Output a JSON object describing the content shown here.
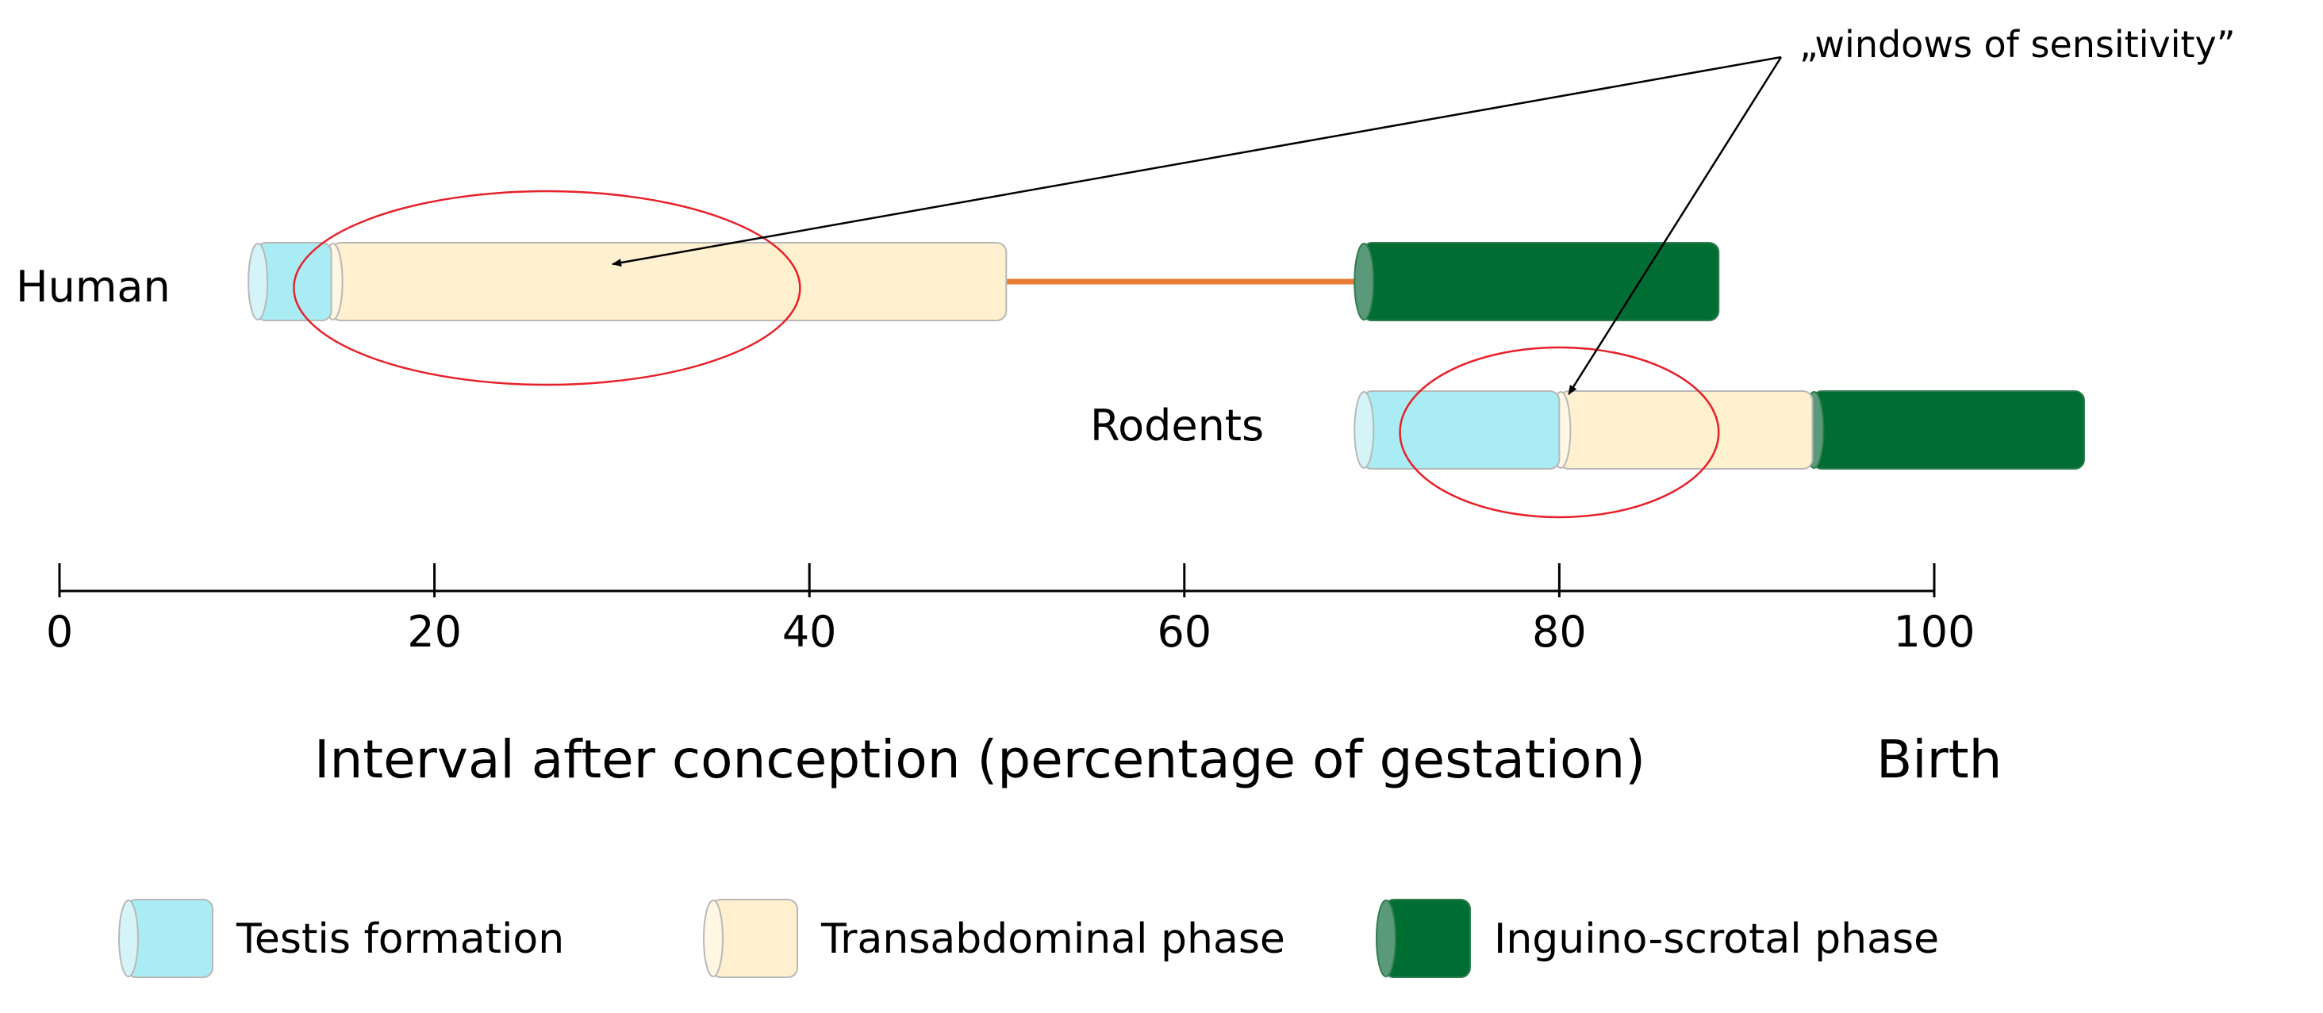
{
  "chart_data": {
    "type": "timeline",
    "annotation": "„windows of sensitivity”",
    "xlabel": "Interval after conception (percentage of gestation)",
    "end_label": "Birth",
    "xlim": [
      0,
      100
    ],
    "ticks": [
      0,
      20,
      40,
      60,
      80,
      100
    ],
    "rows": [
      {
        "name": "Human",
        "segments": [
          {
            "phase": "testis",
            "start": 10.5,
            "end": 14.5
          },
          {
            "phase": "transabdominal",
            "start": 14.5,
            "end": 50.5
          },
          {
            "phase": "inguino",
            "start": 69.5,
            "end": 88.5
          }
        ],
        "gap": {
          "start": 50.5,
          "end": 69.5,
          "color": "#e97b32"
        },
        "window": {
          "start": 12.5,
          "end": 39.5
        }
      },
      {
        "name": "Rodents",
        "segments": [
          {
            "phase": "testis",
            "start": 69.5,
            "end": 80
          },
          {
            "phase": "transabdominal",
            "start": 80,
            "end": 93.5
          },
          {
            "phase": "inguino",
            "start": 93.5,
            "end": 108
          }
        ],
        "window": {
          "start": 71.5,
          "end": 88.5
        }
      }
    ],
    "legend": [
      {
        "key": "testis",
        "label": "Testis formation",
        "color": "#a9ecf3"
      },
      {
        "key": "transabdominal",
        "label": "Transabdominal phase",
        "color": "#fff0cf"
      },
      {
        "key": "inguino",
        "label": "Inguino-scrotal phase",
        "color": "#006d32"
      }
    ]
  }
}
